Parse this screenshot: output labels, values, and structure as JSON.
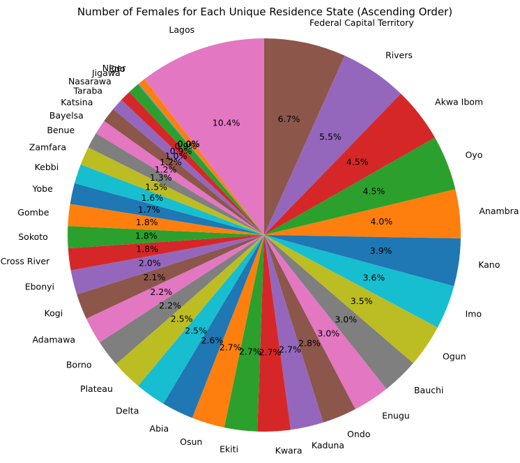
{
  "chart_data": {
    "type": "pie",
    "title": "Number of Females for Each Unique Residence State (Ascending Order)",
    "start_angle_deg": 90,
    "direction": "clockwise",
    "slices": [
      {
        "label": "Federal Capital Territory",
        "value": 6.7,
        "pct_label": "6.7%",
        "color": "#8c564b"
      },
      {
        "label": "Rivers",
        "value": 5.5,
        "pct_label": "5.5%",
        "color": "#9467bd"
      },
      {
        "label": "Akwa Ibom",
        "value": 4.5,
        "pct_label": "4.5%",
        "color": "#d62728"
      },
      {
        "label": "Oyo",
        "value": 4.5,
        "pct_label": "4.5%",
        "color": "#2ca02c"
      },
      {
        "label": "Anambra",
        "value": 4.0,
        "pct_label": "4.0%",
        "color": "#ff7f0e"
      },
      {
        "label": "Kano",
        "value": 3.9,
        "pct_label": "3.9%",
        "color": "#1f77b4"
      },
      {
        "label": "Imo",
        "value": 3.6,
        "pct_label": "3.6%",
        "color": "#17becf"
      },
      {
        "label": "Ogun",
        "value": 3.5,
        "pct_label": "3.5%",
        "color": "#bcbd22"
      },
      {
        "label": "Bauchi",
        "value": 3.0,
        "pct_label": "3.0%",
        "color": "#7f7f7f"
      },
      {
        "label": "Enugu",
        "value": 3.0,
        "pct_label": "3.0%",
        "color": "#e377c2"
      },
      {
        "label": "Ondo",
        "value": 2.8,
        "pct_label": "2.8%",
        "color": "#8c564b"
      },
      {
        "label": "Kaduna",
        "value": 2.7,
        "pct_label": "2.7%",
        "color": "#9467bd"
      },
      {
        "label": "Kwara",
        "value": 2.7,
        "pct_label": "2.7%",
        "color": "#d62728"
      },
      {
        "label": "Ekiti",
        "value": 2.7,
        "pct_label": "2.7%",
        "color": "#2ca02c"
      },
      {
        "label": "Osun",
        "value": 2.7,
        "pct_label": "2.7%",
        "color": "#ff7f0e"
      },
      {
        "label": "Abia",
        "value": 2.6,
        "pct_label": "2.6%",
        "color": "#1f77b4"
      },
      {
        "label": "Delta",
        "value": 2.5,
        "pct_label": "2.5%",
        "color": "#17becf"
      },
      {
        "label": "Plateau",
        "value": 2.5,
        "pct_label": "2.5%",
        "color": "#bcbd22"
      },
      {
        "label": "Borno",
        "value": 2.2,
        "pct_label": "2.2%",
        "color": "#7f7f7f"
      },
      {
        "label": "Adamawa",
        "value": 2.2,
        "pct_label": "2.2%",
        "color": "#e377c2"
      },
      {
        "label": "Kogi",
        "value": 2.1,
        "pct_label": "2.1%",
        "color": "#8c564b"
      },
      {
        "label": "Ebonyi",
        "value": 2.0,
        "pct_label": "2.0%",
        "color": "#9467bd"
      },
      {
        "label": "Cross River",
        "value": 1.8,
        "pct_label": "1.8%",
        "color": "#d62728"
      },
      {
        "label": "Sokoto",
        "value": 1.8,
        "pct_label": "1.8%",
        "color": "#2ca02c"
      },
      {
        "label": "Gombe",
        "value": 1.8,
        "pct_label": "1.8%",
        "color": "#ff7f0e"
      },
      {
        "label": "Yobe",
        "value": 1.7,
        "pct_label": "1.7%",
        "color": "#1f77b4"
      },
      {
        "label": "Kebbi",
        "value": 1.6,
        "pct_label": "1.6%",
        "color": "#17becf"
      },
      {
        "label": "Zamfara",
        "value": 1.5,
        "pct_label": "1.5%",
        "color": "#bcbd22"
      },
      {
        "label": "Benue",
        "value": 1.3,
        "pct_label": "1.3%",
        "color": "#7f7f7f"
      },
      {
        "label": "Bayelsa",
        "value": 1.2,
        "pct_label": "1.2%",
        "color": "#e377c2"
      },
      {
        "label": "Katsina",
        "value": 1.2,
        "pct_label": "1.2%",
        "color": "#8c564b"
      },
      {
        "label": "Taraba",
        "value": 1.0,
        "pct_label": "1.0%",
        "color": "#9467bd"
      },
      {
        "label": "Nasarawa",
        "value": 0.9,
        "pct_label": "0.9%",
        "color": "#d62728"
      },
      {
        "label": "Jigawa",
        "value": 0.9,
        "pct_label": "0.9%",
        "color": "#2ca02c"
      },
      {
        "label": "Edo",
        "value": 0.05,
        "pct_label": "0.0%",
        "color": "#1f77b4"
      },
      {
        "label": "Niger",
        "value": 0.05,
        "pct_label": "0.0%",
        "color": "#17becf"
      },
      {
        "label": "",
        "value": 0.6,
        "pct_label": "",
        "color": "#ff7f0e"
      },
      {
        "label": "Lagos",
        "value": 10.4,
        "pct_label": "10.4%",
        "color": "#e377c2"
      }
    ]
  }
}
